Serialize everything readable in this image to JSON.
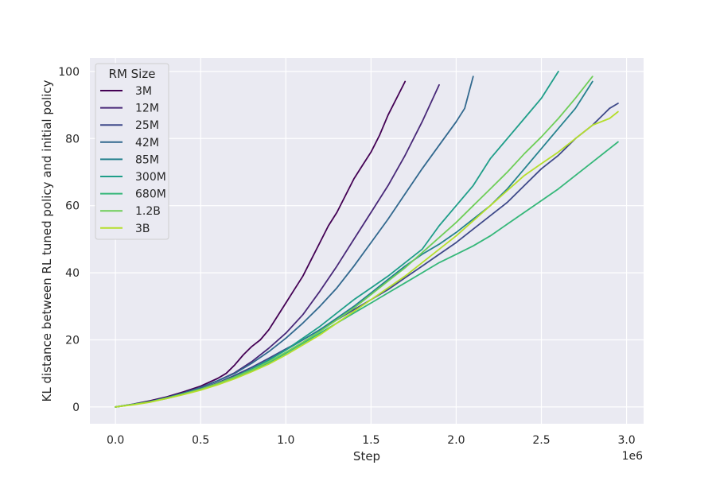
{
  "chart_data": {
    "type": "line",
    "title": "",
    "xlabel": "Step",
    "ylabel": "KL distance between RL tuned policy and initial policy",
    "x_offset_label": "1e6",
    "xlim": [
      -0.15,
      3.1
    ],
    "ylim": [
      -5,
      104
    ],
    "xticks": [
      0.0,
      0.5,
      1.0,
      1.5,
      2.0,
      2.5,
      3.0
    ],
    "xtick_labels": [
      "0.0",
      "0.5",
      "1.0",
      "1.5",
      "2.0",
      "2.5",
      "3.0"
    ],
    "yticks": [
      0,
      20,
      40,
      60,
      80,
      100
    ],
    "ytick_labels": [
      "0",
      "20",
      "40",
      "60",
      "80",
      "100"
    ],
    "grid": true,
    "legend": {
      "title": "RM Size",
      "placement": "top-left"
    },
    "series": [
      {
        "name": "3M",
        "color": "#440154",
        "x": [
          0.0,
          0.1,
          0.2,
          0.3,
          0.4,
          0.5,
          0.6,
          0.65,
          0.7,
          0.75,
          0.8,
          0.85,
          0.9,
          0.95,
          1.0,
          1.05,
          1.1,
          1.15,
          1.2,
          1.25,
          1.3,
          1.35,
          1.4,
          1.45,
          1.5,
          1.55,
          1.6,
          1.65,
          1.7
        ],
        "y": [
          0,
          0.8,
          1.8,
          3.0,
          4.5,
          6.2,
          8.5,
          10.0,
          12.5,
          15.5,
          18.0,
          20.0,
          23.0,
          27.0,
          31.0,
          35.0,
          39.0,
          44.0,
          49.0,
          54.0,
          58.0,
          63.0,
          68.0,
          72.0,
          76.0,
          81.0,
          87.0,
          92.0,
          97.0
        ]
      },
      {
        "name": "12M",
        "color": "#482878",
        "x": [
          0.0,
          0.1,
          0.2,
          0.3,
          0.4,
          0.5,
          0.6,
          0.7,
          0.8,
          0.9,
          1.0,
          1.1,
          1.2,
          1.3,
          1.4,
          1.5,
          1.6,
          1.7,
          1.8,
          1.9
        ],
        "y": [
          0,
          0.7,
          1.6,
          2.8,
          4.2,
          5.8,
          7.8,
          10.2,
          13.5,
          17.5,
          22.0,
          27.5,
          34.5,
          42.0,
          50.0,
          58.0,
          66.0,
          75.0,
          85.0,
          96.0
        ]
      },
      {
        "name": "25M",
        "color": "#3e4989",
        "x": [
          0.0,
          0.1,
          0.2,
          0.3,
          0.4,
          0.5,
          0.6,
          0.7,
          0.8,
          0.9,
          1.0,
          1.1,
          1.2,
          1.3,
          1.4,
          1.5,
          1.6,
          1.7,
          1.8,
          1.9,
          2.0,
          2.1,
          2.2,
          2.3,
          2.4,
          2.5,
          2.6,
          2.7,
          2.8,
          2.9,
          2.95
        ],
        "y": [
          0,
          0.7,
          1.5,
          2.6,
          3.9,
          5.4,
          7.2,
          9.4,
          11.8,
          14.5,
          17.3,
          20.0,
          23.0,
          26.0,
          29.0,
          32.0,
          35.0,
          38.5,
          42.0,
          45.5,
          49.0,
          53.0,
          57.0,
          61.0,
          66.0,
          71.0,
          75.0,
          80.0,
          84.0,
          89.0,
          90.5
        ]
      },
      {
        "name": "42M",
        "color": "#31688e",
        "x": [
          0.0,
          0.1,
          0.2,
          0.3,
          0.4,
          0.5,
          0.6,
          0.7,
          0.8,
          0.9,
          1.0,
          1.1,
          1.2,
          1.3,
          1.4,
          1.5,
          1.6,
          1.7,
          1.8,
          1.9,
          2.0,
          2.05,
          2.1
        ],
        "y": [
          0,
          0.7,
          1.6,
          2.8,
          4.2,
          5.8,
          7.8,
          10.0,
          13.0,
          16.5,
          20.5,
          25.0,
          30.0,
          35.5,
          42.0,
          49.0,
          56.0,
          63.5,
          71.0,
          78.0,
          85.0,
          89.0,
          98.5
        ]
      },
      {
        "name": "85M",
        "color": "#26828e",
        "x": [
          0.0,
          0.1,
          0.2,
          0.3,
          0.4,
          0.5,
          0.6,
          0.7,
          0.8,
          0.9,
          1.0,
          1.1,
          1.2,
          1.3,
          1.4,
          1.5,
          1.6,
          1.7,
          1.8,
          1.9,
          2.0,
          2.1,
          2.2,
          2.3,
          2.4,
          2.5,
          2.6,
          2.7,
          2.8
        ],
        "y": [
          0,
          0.7,
          1.5,
          2.6,
          3.9,
          5.3,
          7.0,
          9.0,
          11.3,
          14.0,
          17.0,
          20.0,
          23.0,
          26.5,
          30.0,
          34.0,
          38.0,
          42.0,
          45.5,
          48.5,
          52.0,
          56.0,
          60.0,
          65.0,
          71.0,
          77.0,
          83.0,
          89.0,
          97.0
        ]
      },
      {
        "name": "300M",
        "color": "#1f9e89",
        "x": [
          0.0,
          0.1,
          0.2,
          0.3,
          0.4,
          0.5,
          0.6,
          0.7,
          0.8,
          0.9,
          1.0,
          1.1,
          1.2,
          1.3,
          1.4,
          1.5,
          1.6,
          1.7,
          1.8,
          1.9,
          2.0,
          2.1,
          2.2,
          2.3,
          2.4,
          2.5,
          2.6
        ],
        "y": [
          0,
          0.7,
          1.5,
          2.6,
          3.8,
          5.2,
          6.9,
          9.0,
          11.3,
          14.0,
          17.0,
          20.5,
          24.0,
          28.0,
          32.0,
          35.5,
          39.0,
          43.0,
          47.0,
          54.0,
          60.0,
          66.0,
          74.0,
          80.0,
          86.0,
          92.0,
          100.0
        ]
      },
      {
        "name": "680M",
        "color": "#35b779",
        "x": [
          0.0,
          0.1,
          0.2,
          0.3,
          0.4,
          0.5,
          0.6,
          0.7,
          0.8,
          0.9,
          1.0,
          1.1,
          1.2,
          1.3,
          1.4,
          1.5,
          1.6,
          1.7,
          1.8,
          1.9,
          2.0,
          2.1,
          2.2,
          2.3,
          2.4,
          2.5,
          2.6,
          2.7,
          2.8,
          2.9,
          2.95
        ],
        "y": [
          0,
          0.7,
          1.5,
          2.5,
          3.8,
          5.2,
          6.8,
          8.7,
          10.8,
          13.2,
          16.0,
          19.0,
          22.0,
          25.0,
          28.0,
          31.0,
          34.0,
          37.0,
          40.0,
          43.0,
          45.5,
          48.0,
          51.0,
          54.5,
          58.0,
          61.5,
          65.0,
          69.0,
          73.0,
          77.0,
          79.0
        ]
      },
      {
        "name": "1.2B",
        "color": "#6ece58",
        "x": [
          0.0,
          0.1,
          0.2,
          0.3,
          0.4,
          0.5,
          0.6,
          0.7,
          0.8,
          0.9,
          1.0,
          1.1,
          1.2,
          1.3,
          1.4,
          1.5,
          1.6,
          1.7,
          1.8,
          1.9,
          2.0,
          2.1,
          2.2,
          2.3,
          2.4,
          2.5,
          2.6,
          2.7,
          2.8
        ],
        "y": [
          0,
          0.7,
          1.5,
          2.6,
          3.9,
          5.3,
          7.0,
          8.9,
          11.0,
          13.5,
          16.3,
          19.3,
          22.5,
          26.0,
          29.5,
          33.5,
          37.5,
          41.5,
          46.0,
          50.5,
          55.0,
          60.0,
          65.0,
          70.0,
          75.5,
          80.5,
          86.0,
          92.0,
          98.5
        ]
      },
      {
        "name": "3B",
        "color": "#b5de2b",
        "x": [
          0.0,
          0.1,
          0.2,
          0.3,
          0.4,
          0.5,
          0.6,
          0.7,
          0.8,
          0.9,
          1.0,
          1.1,
          1.2,
          1.3,
          1.4,
          1.5,
          1.6,
          1.7,
          1.8,
          1.9,
          2.0,
          2.1,
          2.2,
          2.3,
          2.4,
          2.5,
          2.6,
          2.7,
          2.8,
          2.9,
          2.95
        ],
        "y": [
          0,
          0.6,
          1.4,
          2.5,
          3.7,
          5.0,
          6.6,
          8.4,
          10.5,
          12.8,
          15.5,
          18.5,
          21.5,
          25.0,
          28.5,
          32.0,
          35.5,
          39.0,
          43.0,
          47.0,
          51.0,
          55.5,
          60.0,
          64.5,
          69.0,
          72.5,
          76.0,
          80.0,
          84.0,
          86.0,
          88.0
        ]
      }
    ]
  }
}
